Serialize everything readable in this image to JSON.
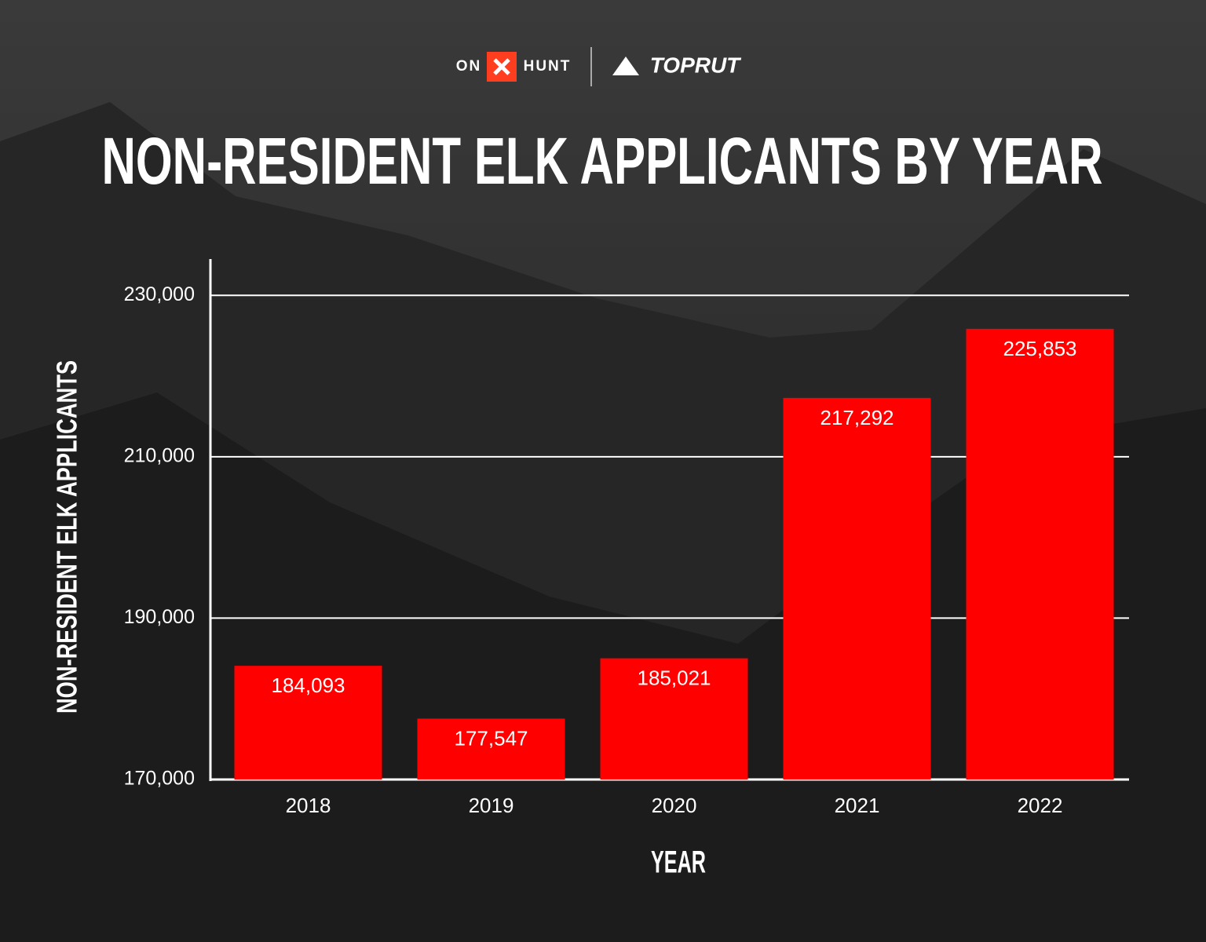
{
  "logos": [
    "ON",
    "HUNT",
    "TOPRUT"
  ],
  "chart_data": {
    "type": "bar",
    "title": "NON-RESIDENT ELK APPLICANTS BY YEAR",
    "x_label": "YEAR",
    "y_label": "NON-RESIDENT ELK APPLICANTS",
    "categories": [
      "2018",
      "2019",
      "2020",
      "2021",
      "2022"
    ],
    "values": [
      184093,
      177547,
      185021,
      217292,
      225853
    ],
    "value_labels": [
      "184,093",
      "177,547",
      "185,021",
      "217,292",
      "225,853"
    ],
    "color": "#ff0000",
    "ylim": [
      170000,
      234500
    ],
    "yticks": [
      {
        "value": 170000,
        "label": "170,000"
      },
      {
        "value": 190000,
        "label": "190,000"
      },
      {
        "value": 210000,
        "label": "210,000"
      },
      {
        "value": 230000,
        "label": "230,000"
      }
    ],
    "grid": true
  }
}
